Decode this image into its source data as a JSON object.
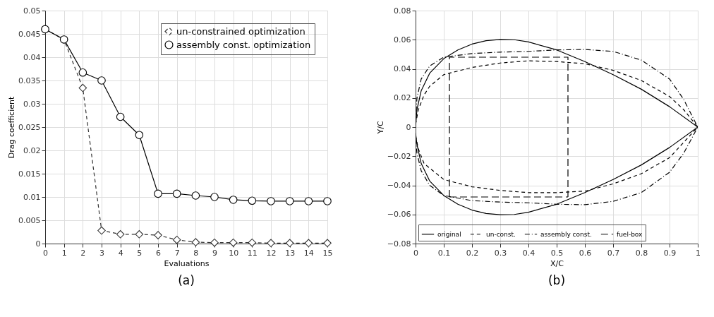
{
  "chart_data": [
    {
      "type": "line",
      "title": "(a)",
      "xlabel": "Evaluations",
      "ylabel": "Drag coefficient",
      "x": [
        0,
        1,
        2,
        3,
        4,
        5,
        6,
        7,
        8,
        9,
        10,
        11,
        12,
        13,
        14,
        15
      ],
      "xlim": [
        0,
        15
      ],
      "ylim": [
        0,
        0.05
      ],
      "xticks": [
        0,
        1,
        2,
        3,
        4,
        5,
        6,
        7,
        8,
        9,
        10,
        11,
        12,
        13,
        14,
        15
      ],
      "yticks": [
        0,
        0.005,
        0.01,
        0.015,
        0.02,
        0.025,
        0.03,
        0.035,
        0.04,
        0.045,
        0.05
      ],
      "grid": true,
      "legend": "top right",
      "series": [
        {
          "name": "un-constrained optimization",
          "color": "#333333",
          "line_style": "dashed",
          "marker": "diamond",
          "values": [
            0.046,
            0.0438,
            0.0334,
            0.0028,
            0.002,
            0.002,
            0.0018,
            0.0008,
            0.0003,
            0.0002,
            0.0002,
            0.0002,
            0.0001,
            0.0001,
            0.0001,
            0.0001
          ]
        },
        {
          "name": "assembly const. optimization",
          "color": "#000000",
          "line_style": "solid",
          "marker": "circle",
          "values": [
            0.046,
            0.0438,
            0.0367,
            0.035,
            0.0272,
            0.0233,
            0.0107,
            0.0107,
            0.0103,
            0.01,
            0.0094,
            0.0092,
            0.0091,
            0.0091,
            0.0091,
            0.0091
          ]
        }
      ]
    },
    {
      "type": "line",
      "title": "(b)",
      "xlabel": "X/C",
      "ylabel": "Y/C",
      "xlim": [
        0,
        1
      ],
      "ylim": [
        -0.08,
        0.08
      ],
      "xticks": [
        0,
        0.1,
        0.2,
        0.3,
        0.4,
        0.5,
        0.6,
        0.7,
        0.8,
        0.9,
        1
      ],
      "yticks": [
        -0.08,
        -0.06,
        -0.04,
        -0.02,
        0,
        0.02,
        0.04,
        0.06,
        0.08
      ],
      "grid": true,
      "legend": "bottom",
      "series": [
        {
          "name": "original",
          "color": "#000000",
          "line_style": "solid",
          "marker": "none",
          "x": [
            0,
            0.005,
            0.02,
            0.05,
            0.1,
            0.15,
            0.2,
            0.25,
            0.3,
            0.35,
            0.4,
            0.5,
            0.6,
            0.7,
            0.8,
            0.9,
            1
          ],
          "values": [
            0,
            0.012,
            0.025,
            0.037,
            0.047,
            0.053,
            0.057,
            0.0593,
            0.0602,
            0.06,
            0.0585,
            0.053,
            0.045,
            0.036,
            0.026,
            0.014,
            0
          ]
        },
        {
          "color": "#000000",
          "line_style": "solid",
          "marker": "none",
          "x": [
            0,
            0.005,
            0.02,
            0.05,
            0.1,
            0.15,
            0.2,
            0.25,
            0.3,
            0.35,
            0.4,
            0.5,
            0.6,
            0.7,
            0.8,
            0.9,
            1
          ],
          "values": [
            -0.004,
            -0.012,
            -0.025,
            -0.037,
            -0.047,
            -0.053,
            -0.057,
            -0.0593,
            -0.0602,
            -0.06,
            -0.0585,
            -0.053,
            -0.045,
            -0.036,
            -0.026,
            -0.014,
            0
          ]
        },
        {
          "name": "un-const.",
          "color": "#000000",
          "line_style": "dashed",
          "marker": "none",
          "x": [
            0,
            0.01,
            0.03,
            0.05,
            0.1,
            0.2,
            0.3,
            0.4,
            0.5,
            0.6,
            0.7,
            0.8,
            0.9,
            0.95,
            1
          ],
          "values": [
            0.002,
            0.012,
            0.022,
            0.028,
            0.036,
            0.041,
            0.044,
            0.0455,
            0.045,
            0.0435,
            0.039,
            0.032,
            0.021,
            0.012,
            0
          ]
        },
        {
          "color": "#000000",
          "line_style": "dashed",
          "marker": "none",
          "x": [
            0,
            0.01,
            0.03,
            0.1,
            0.2,
            0.3,
            0.4,
            0.5,
            0.6,
            0.7,
            0.8,
            0.9,
            1
          ],
          "values": [
            -0.006,
            -0.015,
            -0.025,
            -0.036,
            -0.041,
            -0.0435,
            -0.045,
            -0.045,
            -0.044,
            -0.039,
            -0.032,
            -0.021,
            0
          ]
        },
        {
          "name": "assembly const.",
          "color": "#000000",
          "line_style": "dashdot",
          "marker": "none",
          "x": [
            0,
            0.005,
            0.02,
            0.05,
            0.1,
            0.2,
            0.3,
            0.4,
            0.5,
            0.6,
            0.7,
            0.8,
            0.9,
            0.95,
            1
          ],
          "values": [
            0.004,
            0.02,
            0.033,
            0.042,
            0.048,
            0.0505,
            0.0515,
            0.052,
            0.053,
            0.0533,
            0.052,
            0.046,
            0.033,
            0.019,
            0
          ]
        },
        {
          "color": "#000000",
          "line_style": "dashdot",
          "marker": "none",
          "x": [
            0,
            0.005,
            0.02,
            0.05,
            0.1,
            0.2,
            0.3,
            0.4,
            0.5,
            0.6,
            0.7,
            0.8,
            0.9,
            0.95,
            1
          ],
          "values": [
            -0.008,
            -0.018,
            -0.03,
            -0.04,
            -0.047,
            -0.0505,
            -0.0515,
            -0.052,
            -0.053,
            -0.0533,
            -0.051,
            -0.045,
            -0.031,
            -0.018,
            0
          ]
        },
        {
          "name": "fuel-box",
          "color": "#000000",
          "line_style": "dashed",
          "marker": "none",
          "x": [
            0.12,
            0.12,
            0.54,
            0.54
          ],
          "values": [
            -0.048,
            0.048,
            0.048,
            -0.048
          ]
        },
        {
          "color": "#000000",
          "line_style": "dashed",
          "marker": "none",
          "x": [
            0.12,
            0.54
          ],
          "values": [
            -0.048,
            -0.048
          ]
        }
      ]
    }
  ]
}
